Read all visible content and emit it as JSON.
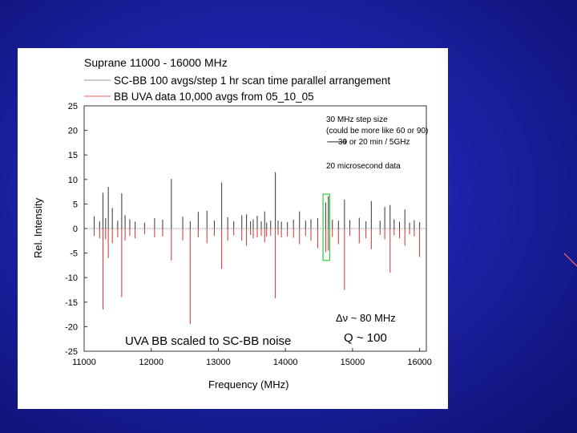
{
  "chart_data": {
    "type": "line",
    "title": "Suprane 11000 - 16000 MHz",
    "xlabel": "Frequency (MHz)",
    "ylabel": "Rel. Intensity",
    "xlim": [
      11000,
      16100
    ],
    "ylim": [
      -25,
      25
    ],
    "xticks": [
      11000,
      12000,
      13000,
      14000,
      15000,
      16000
    ],
    "yticks": [
      25,
      20,
      15,
      10,
      5,
      0,
      -5,
      -10,
      -15,
      -20,
      -25
    ],
    "legend": [
      {
        "name": "SC-BB 100 avgs/step 1 hr scan time parallel arrangement",
        "color": "#999999"
      },
      {
        "name": "BB UVA data 10,000 avgs from 05_10_05",
        "color": "#e06060"
      }
    ],
    "series": [
      {
        "name": "SC-BB 100 avgs/step 1 hr scan time parallel arrangement",
        "color": "#333333",
        "x": [
          11150,
          11230,
          11280,
          11320,
          11360,
          11420,
          11500,
          11560,
          11610,
          11680,
          11760,
          11900,
          12050,
          12170,
          12300,
          12470,
          12580,
          12700,
          12830,
          12940,
          13050,
          13140,
          13230,
          13350,
          13420,
          13480,
          13520,
          13580,
          13640,
          13690,
          13720,
          13780,
          13850,
          13890,
          13940,
          14030,
          14120,
          14210,
          14300,
          14380,
          14480,
          14560,
          14600,
          14640,
          14700,
          14790,
          14880,
          14960,
          15100,
          15200,
          15280,
          15410,
          15480,
          15560,
          15620,
          15700,
          15780,
          15850,
          15920,
          16000
        ],
        "values": [
          2.5,
          1.5,
          7.3,
          2.1,
          8.5,
          4.2,
          1.6,
          7.2,
          2.7,
          1.9,
          1.4,
          1.2,
          2.1,
          1.8,
          10.1,
          2.4,
          1.5,
          3.4,
          3.6,
          1.6,
          9.4,
          2.3,
          1.5,
          2.7,
          2.9,
          1.5,
          1.9,
          2.6,
          1.5,
          3.5,
          1.2,
          1.6,
          11.5,
          1.6,
          1.4,
          1.3,
          1.8,
          3.5,
          1.6,
          1.9,
          2.1,
          3.5,
          5.3,
          6.6,
          1.8,
          1.6,
          5.9,
          1.7,
          2.2,
          1.5,
          5.6,
          1.6,
          4.4,
          4.8,
          1.9,
          1.4,
          3.9,
          1.2,
          1.7,
          1.3
        ]
      },
      {
        "name": "BB UVA data 10,000 avgs from 05_10_05",
        "color": "#d03030",
        "x": [
          11150,
          11230,
          11280,
          11320,
          11360,
          11420,
          11500,
          11560,
          11610,
          11680,
          11760,
          11900,
          12050,
          12170,
          12300,
          12470,
          12580,
          12700,
          12830,
          12940,
          13050,
          13140,
          13230,
          13350,
          13420,
          13480,
          13520,
          13580,
          13640,
          13690,
          13720,
          13780,
          13850,
          13890,
          13940,
          14030,
          14120,
          14210,
          14300,
          14380,
          14480,
          14560,
          14600,
          14640,
          14700,
          14790,
          14880,
          14960,
          15100,
          15200,
          15280,
          15410,
          15480,
          15560,
          15620,
          15700,
          15780,
          15850,
          15920,
          16000
        ],
        "values": [
          -1.5,
          -2.0,
          -16.5,
          -2.2,
          -6.0,
          -3.0,
          -1.8,
          -14.0,
          -2.5,
          -1.5,
          -2.0,
          -1.2,
          -1.8,
          -1.6,
          -6.5,
          -2.4,
          -19.5,
          -1.8,
          -3.0,
          -1.5,
          -8.2,
          -2.5,
          -1.4,
          -2.5,
          -3.5,
          -1.3,
          -2.0,
          -1.8,
          -1.5,
          -2.8,
          -1.6,
          -1.5,
          -14.2,
          -1.3,
          -1.8,
          -1.6,
          -1.9,
          -3.2,
          -1.5,
          -2.5,
          -4.0,
          -6.5,
          -4.8,
          -4.5,
          -1.7,
          -3.2,
          -12.5,
          -1.5,
          -3.0,
          -2.0,
          -4.2,
          -1.3,
          -2.2,
          -9.0,
          -1.4,
          -2.0,
          -3.5,
          -1.2,
          -1.6,
          -5.8
        ]
      }
    ],
    "annotations": {
      "step_size": "30 MHz step size",
      "could_be": "(could be more like 60 or 90)",
      "arrow": "🡒",
      "time": "30 or 20 min / 5GHz",
      "microsecond": "20 microsecond data",
      "delta_nu": "Δν ~ 80 MHz",
      "q_value": "Q ~ 100",
      "scaled": "UVA BB scaled to SC-BB noise",
      "highlight_x_range": [
        14560,
        14660
      ],
      "highlight_y_range": [
        -6.5,
        7
      ]
    }
  }
}
